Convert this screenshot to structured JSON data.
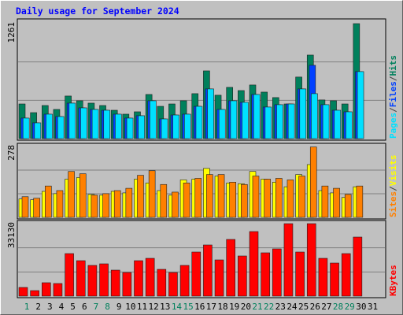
{
  "legend_separator": "/",
  "chart_data": [
    {
      "type": "bar",
      "title": "Daily usage for September 2024",
      "ylim": [
        0,
        1261
      ],
      "yticks": [
        1261
      ],
      "grid": true,
      "series": [
        {
          "name": "Hits",
          "color": "#00805c",
          "values": [
            380,
            285,
            363,
            320,
            467,
            415,
            389,
            363,
            311,
            268,
            294,
            484,
            354,
            380,
            415,
            493,
            743,
            476,
            562,
            527,
            588,
            510,
            450,
            380,
            675,
            916,
            424,
            415,
            380,
            1261,
            0
          ]
        },
        {
          "name": "Files",
          "color": "#0040ff",
          "values": [
            225,
            173,
            268,
            242,
            389,
            337,
            320,
            311,
            268,
            225,
            251,
            415,
            216,
            259,
            268,
            354,
            545,
            320,
            415,
            398,
            484,
            346,
            372,
            380,
            545,
            804,
            372,
            311,
            294,
            735,
            0
          ]
        },
        {
          "name": "Pages",
          "color": "#00e0ff",
          "values": [
            225,
            173,
            268,
            242,
            389,
            337,
            320,
            311,
            268,
            225,
            251,
            415,
            216,
            259,
            268,
            354,
            545,
            320,
            415,
            398,
            484,
            346,
            372,
            380,
            545,
            493,
            372,
            311,
            294,
            735,
            0
          ]
        }
      ]
    },
    {
      "type": "bar",
      "ylim": [
        0,
        278
      ],
      "yticks": [
        278
      ],
      "grid": true,
      "series": [
        {
          "name": "Visits",
          "color": "#ffff00",
          "values": [
            72,
            69,
            102,
            93,
            150,
            156,
            90,
            87,
            102,
            96,
            150,
            135,
            105,
            87,
            147,
            150,
            192,
            162,
            135,
            132,
            180,
            150,
            138,
            120,
            168,
            207,
            105,
            96,
            78,
            120,
            0
          ]
        },
        {
          "name": "Sites",
          "color": "#ff8000",
          "values": [
            81,
            75,
            123,
            105,
            180,
            171,
            87,
            93,
            105,
            114,
            165,
            183,
            129,
            99,
            135,
            153,
            168,
            168,
            138,
            129,
            162,
            150,
            153,
            147,
            162,
            276,
            123,
            114,
            90,
            123,
            0
          ]
        }
      ]
    },
    {
      "type": "bar",
      "ylim": [
        0,
        33130
      ],
      "yticks": [
        33130
      ],
      "grid": true,
      "series": [
        {
          "name": "KBytes",
          "color": "#ff0000",
          "values": [
            3960,
            2520,
            6120,
            5760,
            19440,
            16200,
            14040,
            14760,
            11880,
            10800,
            16200,
            17280,
            12240,
            10800,
            14040,
            20160,
            23400,
            16560,
            25920,
            18360,
            29520,
            19800,
            21600,
            33130,
            20160,
            33130,
            17280,
            15120,
            19440,
            27000,
            0
          ]
        }
      ],
      "categories": [
        "1",
        "2",
        "3",
        "4",
        "5",
        "6",
        "7",
        "8",
        "9",
        "10",
        "11",
        "12",
        "13",
        "14",
        "15",
        "16",
        "17",
        "18",
        "19",
        "20",
        "21",
        "22",
        "23",
        "24",
        "25",
        "26",
        "27",
        "28",
        "29",
        "30",
        "31"
      ],
      "category_colors": [
        "#00805c",
        "#000000",
        "#000000",
        "#000000",
        "#000000",
        "#000000",
        "#00805c",
        "#00805c",
        "#000000",
        "#000000",
        "#000000",
        "#000000",
        "#000000",
        "#00805c",
        "#00805c",
        "#000000",
        "#000000",
        "#000000",
        "#000000",
        "#000000",
        "#00805c",
        "#00805c",
        "#000000",
        "#000000",
        "#000000",
        "#000000",
        "#000000",
        "#00805c",
        "#00805c",
        "#000000",
        "#000000"
      ]
    }
  ]
}
